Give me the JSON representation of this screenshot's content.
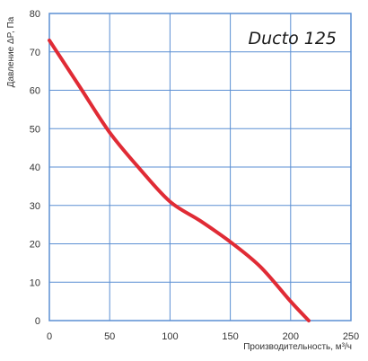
{
  "chart_data": {
    "type": "line",
    "title": "Ducto 125",
    "xlabel": "Производительность, м³/ч",
    "ylabel": "Давление ΔP, Па",
    "xlim": [
      0,
      250
    ],
    "ylim": [
      0,
      80
    ],
    "x_ticks": [
      "0",
      "50",
      "100",
      "150",
      "200",
      "250"
    ],
    "y_ticks": [
      "0",
      "10",
      "20",
      "30",
      "40",
      "50",
      "60",
      "70",
      "80"
    ],
    "grid": true,
    "colors": {
      "curve": "#e02b35",
      "grid": "#5b8fd3",
      "frame": "#5b8fd3"
    },
    "series": [
      {
        "x": [
          0,
          25,
          50,
          75,
          100,
          125,
          150,
          175,
          200,
          215
        ],
        "y": [
          73,
          61,
          49,
          39.5,
          31,
          26,
          20.5,
          14,
          5,
          0
        ]
      }
    ]
  }
}
